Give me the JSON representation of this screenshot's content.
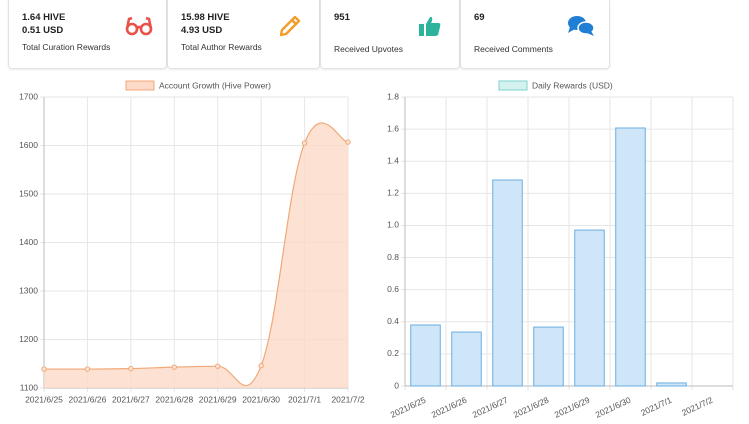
{
  "cards": [
    {
      "lines": [
        "1.64 HIVE",
        "0.51 USD"
      ],
      "caption": "Total Curation Rewards"
    },
    {
      "lines": [
        "15.98 HIVE",
        "4.93 USD"
      ],
      "caption": "Total Author Rewards"
    },
    {
      "lines": [
        "951"
      ],
      "caption": "Received Upvotes"
    },
    {
      "lines": [
        "69"
      ],
      "caption": "Received Comments"
    }
  ],
  "chart_data": [
    {
      "type": "line",
      "legend": "Account Growth (Hive Power)",
      "color": "#f0a878",
      "fill": "#fdd9c8",
      "categories": [
        "2021/6/25",
        "2021/6/26",
        "2021/6/27",
        "2021/6/28",
        "2021/6/29",
        "2021/6/30",
        "2021/7/1",
        "2021/7/2"
      ],
      "values": [
        1139,
        1139,
        1140,
        1143,
        1145,
        1146,
        1605,
        1607
      ],
      "ylim": [
        1100,
        1700
      ],
      "yticks": [
        1100,
        1200,
        1300,
        1400,
        1500,
        1600,
        1700
      ],
      "grid": true
    },
    {
      "type": "bar",
      "legend": "Daily Rewards (USD)",
      "color": "#6aaee0",
      "fill": "#cfe5f8",
      "legend_fill": "#d4f3f0",
      "legend_color": "#7dd3cc",
      "categories": [
        "2021/6/25",
        "2021/6/26",
        "2021/6/27",
        "2021/6/28",
        "2021/6/29",
        "2021/6/30",
        "2021/7/1",
        "2021/7/2"
      ],
      "values": [
        0.38,
        0.336,
        1.283,
        0.367,
        0.971,
        1.607,
        0.019,
        0
      ],
      "ylim": [
        0,
        1.8
      ],
      "yticks": [
        0,
        0.2,
        0.4,
        0.6,
        0.8,
        {
          "value": 1,
          "label": "1.0"
        },
        1.2,
        1.4,
        1.6,
        1.8
      ],
      "grid": true
    }
  ]
}
